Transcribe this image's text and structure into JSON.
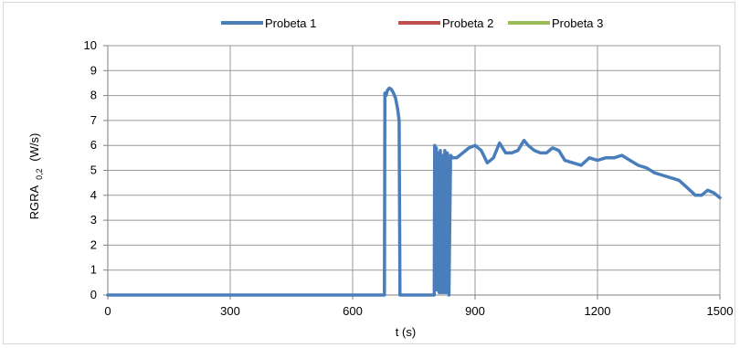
{
  "chart_data": {
    "type": "line",
    "title": "",
    "xlabel": "t (s)",
    "ylabel": "RGRA",
    "ylabel_sub": "0,2",
    "ylabel_unit": "(W/s)",
    "xlim": [
      0,
      1500
    ],
    "ylim": [
      0,
      10
    ],
    "x_ticks": [
      0,
      300,
      600,
      900,
      1200,
      1500
    ],
    "y_ticks": [
      0,
      1,
      2,
      3,
      4,
      5,
      6,
      7,
      8,
      9,
      10
    ],
    "grid": true,
    "legend_position": "top",
    "series": [
      {
        "name": "Probeta 1",
        "color": "#4a7ebb",
        "x": [
          0,
          678,
          679,
          682,
          685,
          690,
          695,
          700,
          705,
          710,
          714,
          716,
          718,
          800,
          801,
          803,
          805,
          807,
          810,
          812,
          815,
          818,
          820,
          823,
          826,
          829,
          832,
          836,
          840,
          845,
          855,
          870,
          885,
          900,
          915,
          930,
          945,
          960,
          975,
          990,
          1005,
          1020,
          1030,
          1045,
          1060,
          1075,
          1090,
          1105,
          1120,
          1140,
          1160,
          1180,
          1200,
          1220,
          1240,
          1260,
          1280,
          1300,
          1320,
          1340,
          1360,
          1380,
          1400,
          1420,
          1440,
          1455,
          1470,
          1485,
          1500
        ],
        "y": [
          0,
          0,
          8.1,
          8.0,
          8.2,
          8.3,
          8.25,
          8.1,
          7.9,
          7.5,
          7.0,
          0,
          0,
          0,
          6.0,
          0.2,
          5.9,
          0.2,
          5.7,
          0.1,
          5.8,
          0.1,
          5.6,
          0.1,
          5.8,
          0.1,
          5.7,
          0,
          5.6,
          5.5,
          5.5,
          5.7,
          5.9,
          6.0,
          5.8,
          5.3,
          5.5,
          6.1,
          5.7,
          5.7,
          5.8,
          6.2,
          6.0,
          5.8,
          5.7,
          5.7,
          5.9,
          5.8,
          5.4,
          5.3,
          5.2,
          5.5,
          5.4,
          5.5,
          5.5,
          5.6,
          5.4,
          5.2,
          5.1,
          4.9,
          4.8,
          4.7,
          4.6,
          4.3,
          4.0,
          4.0,
          4.2,
          4.1,
          3.9
        ]
      },
      {
        "name": "Probeta 2",
        "color": "#c0504d",
        "x": [],
        "y": []
      },
      {
        "name": "Probeta 3",
        "color": "#9bbb59",
        "x": [],
        "y": []
      }
    ]
  }
}
